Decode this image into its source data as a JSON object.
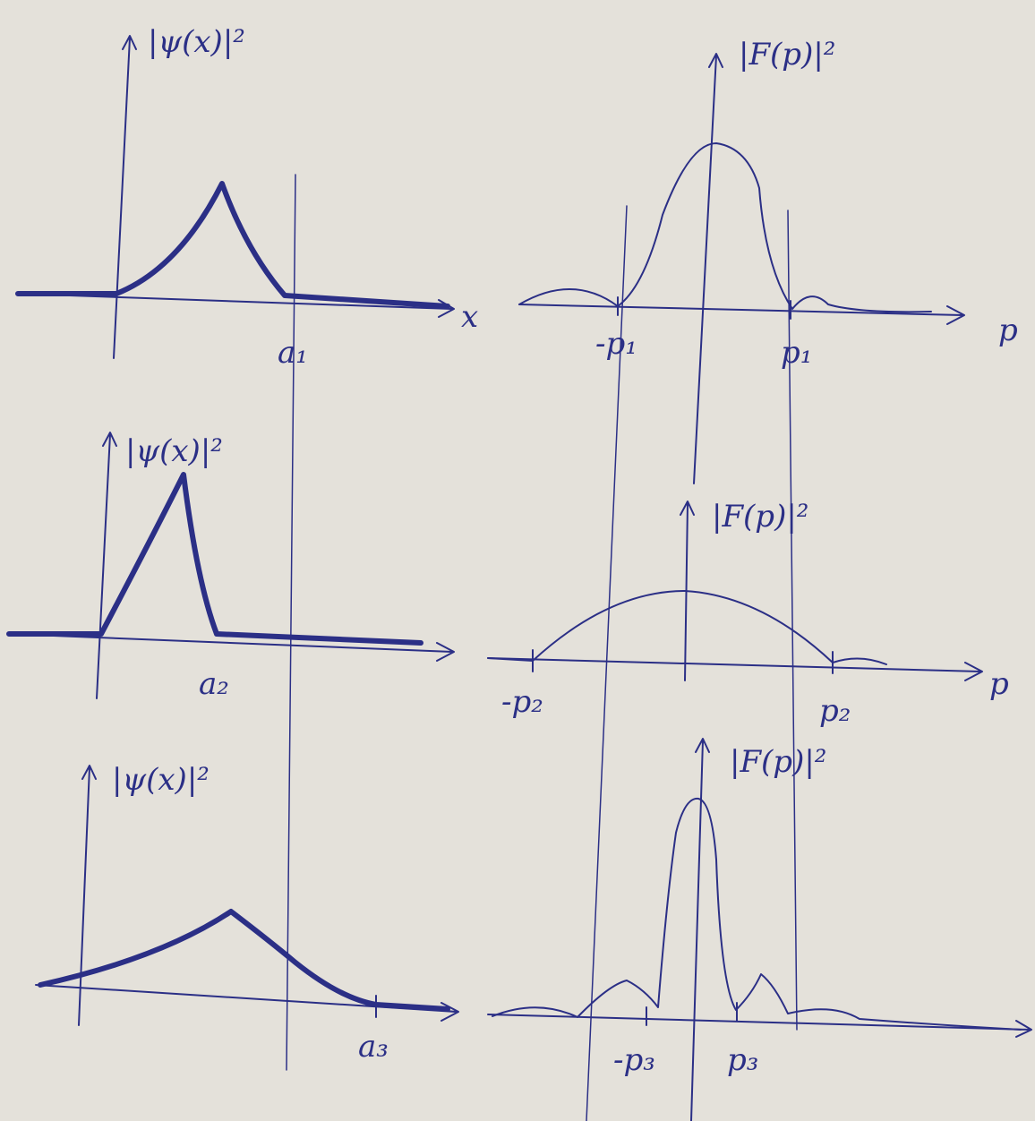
{
  "panels": [
    {
      "y_label": "|ψ(x)|²",
      "x_label": "x",
      "ticks": [
        "a₁"
      ]
    },
    {
      "y_label": "|F(p)|²",
      "x_label": "p",
      "ticks": [
        "-p₁",
        "p₁"
      ]
    },
    {
      "y_label": "|ψ(x)|²",
      "ticks": [
        "a₂"
      ]
    },
    {
      "y_label": "|F(p)|²",
      "x_label": "p",
      "ticks": [
        "-p₂",
        "p₂"
      ]
    },
    {
      "y_label": "|ψ(x)|²",
      "ticks": [
        "a₃"
      ]
    },
    {
      "y_label": "|F(p)|²",
      "ticks": [
        "-p₃",
        "p₃"
      ]
    }
  ]
}
